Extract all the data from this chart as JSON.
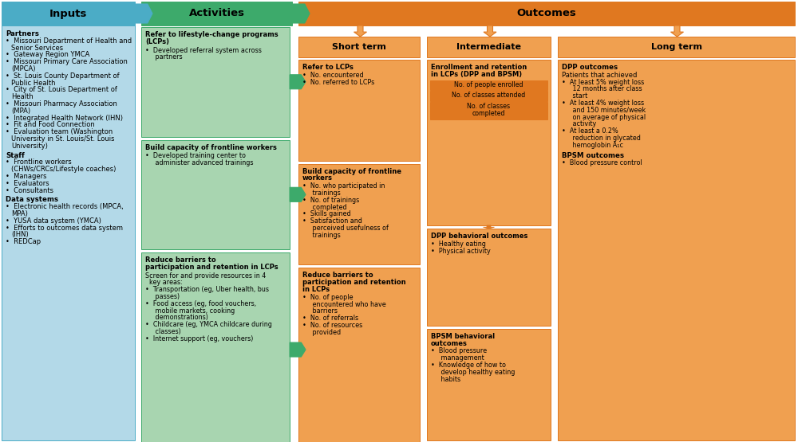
{
  "colors": {
    "blue_header": "#4BACC6",
    "blue_light": "#B3D9E8",
    "green_header": "#3DAA6B",
    "green_light": "#A8D5B0",
    "orange_header": "#E07820",
    "orange_light": "#F0A050",
    "white": "#FFFFFF",
    "black": "#000000"
  },
  "inputs": {
    "partners_header": "Partners",
    "partners_items": [
      "Missouri Department of Health and\nSenior Services",
      "Gateway Region YMCA",
      "Missouri Primary Care Association\n(MPCA)",
      "St. Louis County Department of\nPublic Health",
      "City of St. Louis Department of\nHealth",
      "Missouri Pharmacy Association\n(MPA)",
      "Integrated Health Network (IHN)",
      "Fit and Food Connection",
      "Evaluation team (Washington\nUniversity in St. Louis/St. Louis\nUniversity)"
    ],
    "staff_header": "Staff",
    "staff_items": [
      "Frontline workers\n(CHWs/CRCs/Lifestyle coaches)",
      "Managers",
      "Evaluators",
      "Consultants"
    ],
    "data_header": "Data systems",
    "data_items": [
      "Electronic health records (MPCA,\nMPA)",
      "YUSA data system (YMCA)",
      "Efforts to outcomes data system\n(IHN)",
      "REDCap"
    ]
  },
  "activities": [
    {
      "title": "Refer to lifestyle-change programs\n(LCPs)",
      "items": [
        "•  Developed referral system across\n   partners"
      ]
    },
    {
      "title": "Build capacity of frontline workers",
      "items": [
        "•  Developed training center to\n   administer advanced trainings"
      ]
    },
    {
      "title": "Reduce barriers to\nparticipation and retention in LCPs",
      "items": [
        "Screen for and provide resources in 4\nkey areas:",
        "•  Transportation (eg, Uber health, bus\n   passes)",
        "•  Food access (eg, food vouchers,\n   mobile markets, cooking\n   demonstrations)",
        "•  Childcare (eg, YMCA childcare during\n   classes)",
        "•  Internet support (eg, vouchers)"
      ]
    }
  ],
  "short_term": [
    {
      "title": "Refer to LCPs",
      "items": [
        "•  No. encountered",
        "•  No. referred to LCPs"
      ]
    },
    {
      "title": "Build capacity of frontline\nworkers",
      "items": [
        "•  No. who participated in\n   trainings",
        "•  No. of trainings\n   completed",
        "•  Skills gained",
        "•  Satisfaction and\n   perceived usefulness of\n   trainings"
      ]
    },
    {
      "title": "Reduce barriers to\nparticipation and retention\nin LCPs",
      "items": [
        "•  No. of people\n   encountered who have\n   barriers",
        "•  No. of referrals",
        "•  No. of resources\n   provided"
      ]
    }
  ],
  "intermediate_enroll_title": "Enrollment and retention\nin LCPs (DPP and BPSM)",
  "intermediate_highlighted": [
    "No. of people enrolled",
    "No. of classes attended",
    "No. of classes\ncompleted"
  ],
  "intermediate_dpp_title": "DPP behavioral outcomes",
  "intermediate_dpp_items": [
    "•  Healthy eating",
    "•  Physical activity"
  ],
  "intermediate_bpsm_title": "BPSM behavioral\noutcomes",
  "intermediate_bpsm_items": [
    "•  Blood pressure\n   management",
    "•  Knowledge of how to\n   develop healthy eating\n   habits"
  ],
  "long_dpp_header": "DPP outcomes",
  "long_dpp_intro": "Patients that achieved",
  "long_dpp_items": [
    "•  At least 5% weight loss\n   12 months after class\n   start",
    "•  At least 4% weight loss\n   and 150 minutes/week\n   on average of physical\n   activity",
    "•  At least a 0.2%\n   reduction in glycated\n   hemoglobin A₁c"
  ],
  "long_bpsm_header": "BPSM outcomes",
  "long_bpsm_items": [
    "•  Blood pressure control"
  ]
}
